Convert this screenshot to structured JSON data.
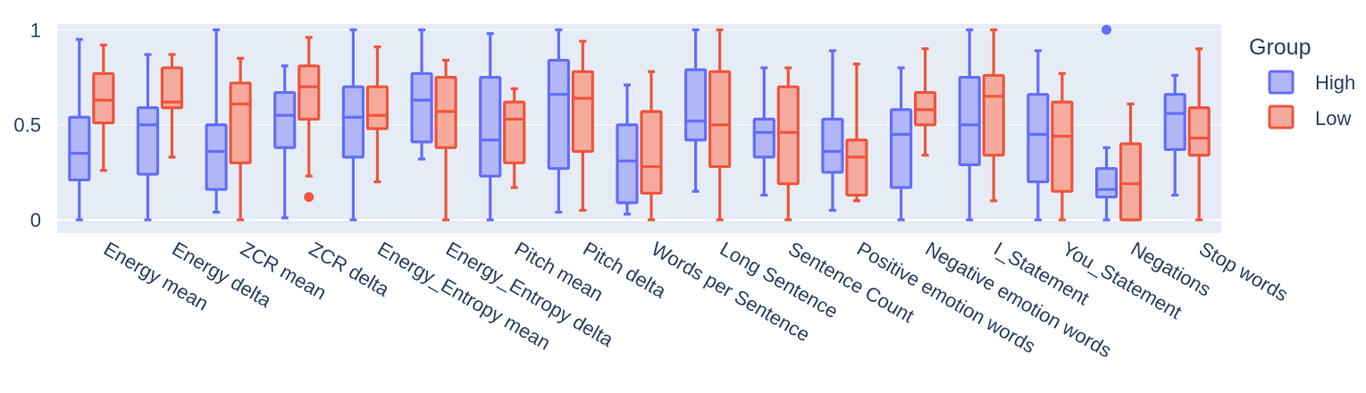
{
  "chart_data": {
    "type": "box",
    "title": "",
    "xlabel": "",
    "ylabel": "",
    "ylim": [
      -0.07,
      1.03
    ],
    "yticks": [
      {
        "value": 0,
        "label": "0"
      },
      {
        "value": 0.5,
        "label": "0.5"
      },
      {
        "value": 1,
        "label": "1"
      }
    ],
    "grid": true,
    "legend": {
      "title": "Group",
      "placement": "right"
    },
    "categories": [
      "Energy mean",
      "Energy delta",
      "ZCR mean",
      "ZCR delta",
      "Energy_Entropy mean",
      "Energy_Entropy delta",
      "Pitch mean",
      "Pitch delta",
      "Words per Sentence",
      "Long Sentence",
      "Sentence Count",
      "Positive emotion words",
      "Negative emotion words",
      "I_Statement",
      "You_Statement",
      "Negations",
      "Stop words"
    ],
    "series": [
      {
        "name": "High",
        "color": "#636efa",
        "fill": "#b1b6f7",
        "boxes": [
          {
            "min": 0.0,
            "q1": 0.21,
            "median": 0.35,
            "q3": 0.54,
            "max": 0.95,
            "outliers": []
          },
          {
            "min": 0.0,
            "q1": 0.24,
            "median": 0.5,
            "q3": 0.59,
            "max": 0.87,
            "outliers": []
          },
          {
            "min": 0.04,
            "q1": 0.16,
            "median": 0.36,
            "q3": 0.5,
            "max": 1.0,
            "outliers": []
          },
          {
            "min": 0.01,
            "q1": 0.38,
            "median": 0.55,
            "q3": 0.67,
            "max": 0.81,
            "outliers": []
          },
          {
            "min": 0.0,
            "q1": 0.33,
            "median": 0.54,
            "q3": 0.7,
            "max": 1.0,
            "outliers": []
          },
          {
            "min": 0.32,
            "q1": 0.41,
            "median": 0.63,
            "q3": 0.77,
            "max": 1.0,
            "outliers": []
          },
          {
            "min": 0.0,
            "q1": 0.23,
            "median": 0.42,
            "q3": 0.75,
            "max": 0.98,
            "outliers": []
          },
          {
            "min": 0.04,
            "q1": 0.27,
            "median": 0.66,
            "q3": 0.84,
            "max": 1.0,
            "outliers": []
          },
          {
            "min": 0.03,
            "q1": 0.09,
            "median": 0.31,
            "q3": 0.5,
            "max": 0.71,
            "outliers": []
          },
          {
            "min": 0.15,
            "q1": 0.42,
            "median": 0.52,
            "q3": 0.79,
            "max": 1.0,
            "outliers": []
          },
          {
            "min": 0.13,
            "q1": 0.33,
            "median": 0.46,
            "q3": 0.53,
            "max": 0.8,
            "outliers": []
          },
          {
            "min": 0.05,
            "q1": 0.25,
            "median": 0.36,
            "q3": 0.53,
            "max": 0.89,
            "outliers": []
          },
          {
            "min": 0.0,
            "q1": 0.17,
            "median": 0.45,
            "q3": 0.58,
            "max": 0.8,
            "outliers": []
          },
          {
            "min": 0.0,
            "q1": 0.29,
            "median": 0.5,
            "q3": 0.75,
            "max": 1.0,
            "outliers": []
          },
          {
            "min": 0.0,
            "q1": 0.2,
            "median": 0.45,
            "q3": 0.66,
            "max": 0.89,
            "outliers": []
          },
          {
            "min": 0.0,
            "q1": 0.12,
            "median": 0.16,
            "q3": 0.27,
            "max": 0.38,
            "outliers": [
              1.0
            ]
          },
          {
            "min": 0.13,
            "q1": 0.37,
            "median": 0.56,
            "q3": 0.66,
            "max": 0.76,
            "outliers": []
          }
        ]
      },
      {
        "name": "Low",
        "color": "#ef553b",
        "fill": "#f4ab9e",
        "boxes": [
          {
            "min": 0.26,
            "q1": 0.51,
            "median": 0.63,
            "q3": 0.77,
            "max": 0.92,
            "outliers": []
          },
          {
            "min": 0.33,
            "q1": 0.59,
            "median": 0.62,
            "q3": 0.8,
            "max": 0.87,
            "outliers": []
          },
          {
            "min": 0.0,
            "q1": 0.3,
            "median": 0.61,
            "q3": 0.72,
            "max": 0.85,
            "outliers": []
          },
          {
            "min": 0.23,
            "q1": 0.53,
            "median": 0.7,
            "q3": 0.81,
            "max": 0.96,
            "outliers": [
              0.12
            ]
          },
          {
            "min": 0.2,
            "q1": 0.48,
            "median": 0.55,
            "q3": 0.7,
            "max": 0.91,
            "outliers": []
          },
          {
            "min": 0.0,
            "q1": 0.38,
            "median": 0.57,
            "q3": 0.75,
            "max": 0.84,
            "outliers": []
          },
          {
            "min": 0.17,
            "q1": 0.3,
            "median": 0.53,
            "q3": 0.62,
            "max": 0.69,
            "outliers": []
          },
          {
            "min": 0.05,
            "q1": 0.36,
            "median": 0.64,
            "q3": 0.78,
            "max": 0.94,
            "outliers": []
          },
          {
            "min": 0.0,
            "q1": 0.14,
            "median": 0.28,
            "q3": 0.57,
            "max": 0.78,
            "outliers": []
          },
          {
            "min": 0.0,
            "q1": 0.28,
            "median": 0.5,
            "q3": 0.78,
            "max": 1.0,
            "outliers": []
          },
          {
            "min": 0.0,
            "q1": 0.19,
            "median": 0.46,
            "q3": 0.7,
            "max": 0.8,
            "outliers": []
          },
          {
            "min": 0.1,
            "q1": 0.13,
            "median": 0.33,
            "q3": 0.42,
            "max": 0.82,
            "outliers": []
          },
          {
            "min": 0.34,
            "q1": 0.5,
            "median": 0.58,
            "q3": 0.67,
            "max": 0.9,
            "outliers": []
          },
          {
            "min": 0.1,
            "q1": 0.34,
            "median": 0.65,
            "q3": 0.76,
            "max": 1.0,
            "outliers": []
          },
          {
            "min": 0.0,
            "q1": 0.15,
            "median": 0.44,
            "q3": 0.62,
            "max": 0.77,
            "outliers": []
          },
          {
            "min": 0.0,
            "q1": 0.0,
            "median": 0.19,
            "q3": 0.4,
            "max": 0.61,
            "outliers": []
          },
          {
            "min": 0.0,
            "q1": 0.34,
            "median": 0.43,
            "q3": 0.59,
            "max": 0.9,
            "outliers": []
          }
        ]
      }
    ]
  }
}
